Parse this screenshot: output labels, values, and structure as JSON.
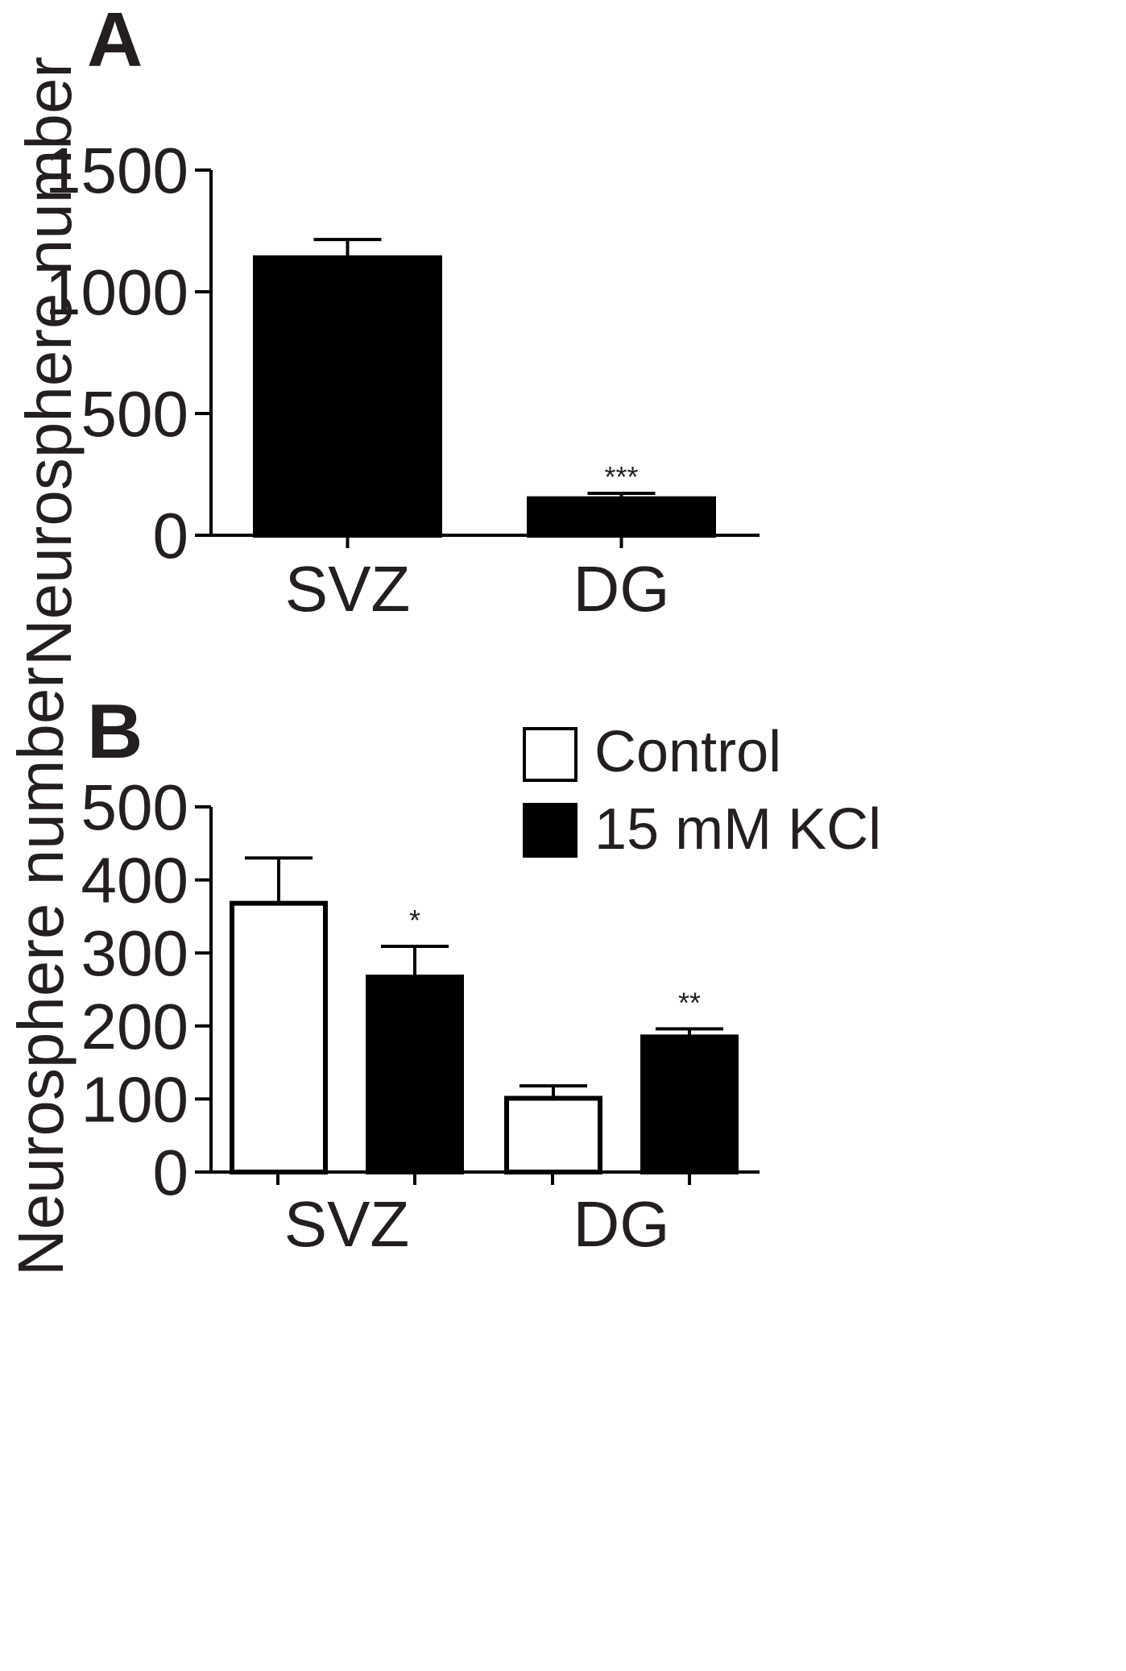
{
  "colors": {
    "ink": "#000000",
    "text": "#231f20",
    "control_fill": "#ffffff",
    "kcl_fill": "#000000"
  },
  "chart_data": [
    {
      "panel": "A",
      "type": "bar",
      "ylabel": "Neurosphere number",
      "ylim": [
        0,
        1500
      ],
      "yticks": [
        "0",
        "500",
        "1000",
        "1500"
      ],
      "categories": [
        "SVZ",
        "DG"
      ],
      "values": [
        1140,
        150
      ],
      "errors": [
        75,
        22
      ],
      "significance": [
        "",
        "***"
      ]
    },
    {
      "panel": "B",
      "type": "bar",
      "ylabel": "Neurosphere number",
      "ylim": [
        0,
        500
      ],
      "yticks": [
        "0",
        "100",
        "200",
        "300",
        "400",
        "500"
      ],
      "categories": [
        "SVZ",
        "DG"
      ],
      "legend": {
        "position": "top-right"
      },
      "series": [
        {
          "name": "Control",
          "color": "#ffffff",
          "values": [
            368,
            101
          ],
          "errors": [
            62,
            17
          ],
          "significance": [
            "",
            ""
          ]
        },
        {
          "name": "15 mM KCl",
          "color": "#000000",
          "values": [
            267,
            185
          ],
          "errors": [
            42,
            11
          ],
          "significance": [
            "*",
            "**"
          ]
        }
      ]
    }
  ]
}
